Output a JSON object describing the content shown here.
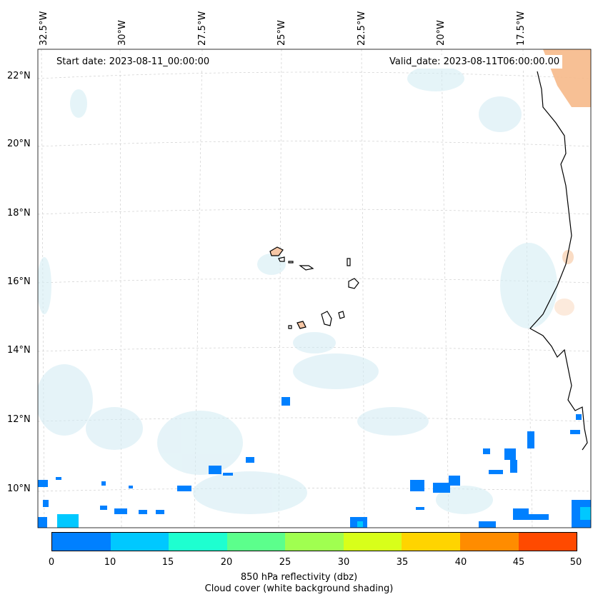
{
  "map": {
    "start_label": "Start date: 2023-08-11_00:00:00",
    "valid_label": "Valid_date: 2023-08-11T06:00:00.00",
    "lon_labels": [
      "32.5°W",
      "30°W",
      "27.5°W",
      "25°W",
      "22.5°W",
      "20°W",
      "17.5°W"
    ],
    "lat_labels": [
      "22°N",
      "20°N",
      "18°N",
      "16°N",
      "14°N",
      "12°N",
      "10°N"
    ]
  },
  "colorbar": {
    "ticks": [
      "0",
      "10",
      "15",
      "20",
      "25",
      "30",
      "35",
      "40",
      "45",
      "50"
    ],
    "colors": [
      "#0080ff",
      "#00c8ff",
      "#1effd0",
      "#5cff8c",
      "#a0ff50",
      "#d8ff1a",
      "#ffd400",
      "#ff8c00",
      "#ff4a00"
    ],
    "title_line1": "850 hPa reflectivity (dbz)",
    "title_line2": "Cloud cover (white background shading)"
  }
}
